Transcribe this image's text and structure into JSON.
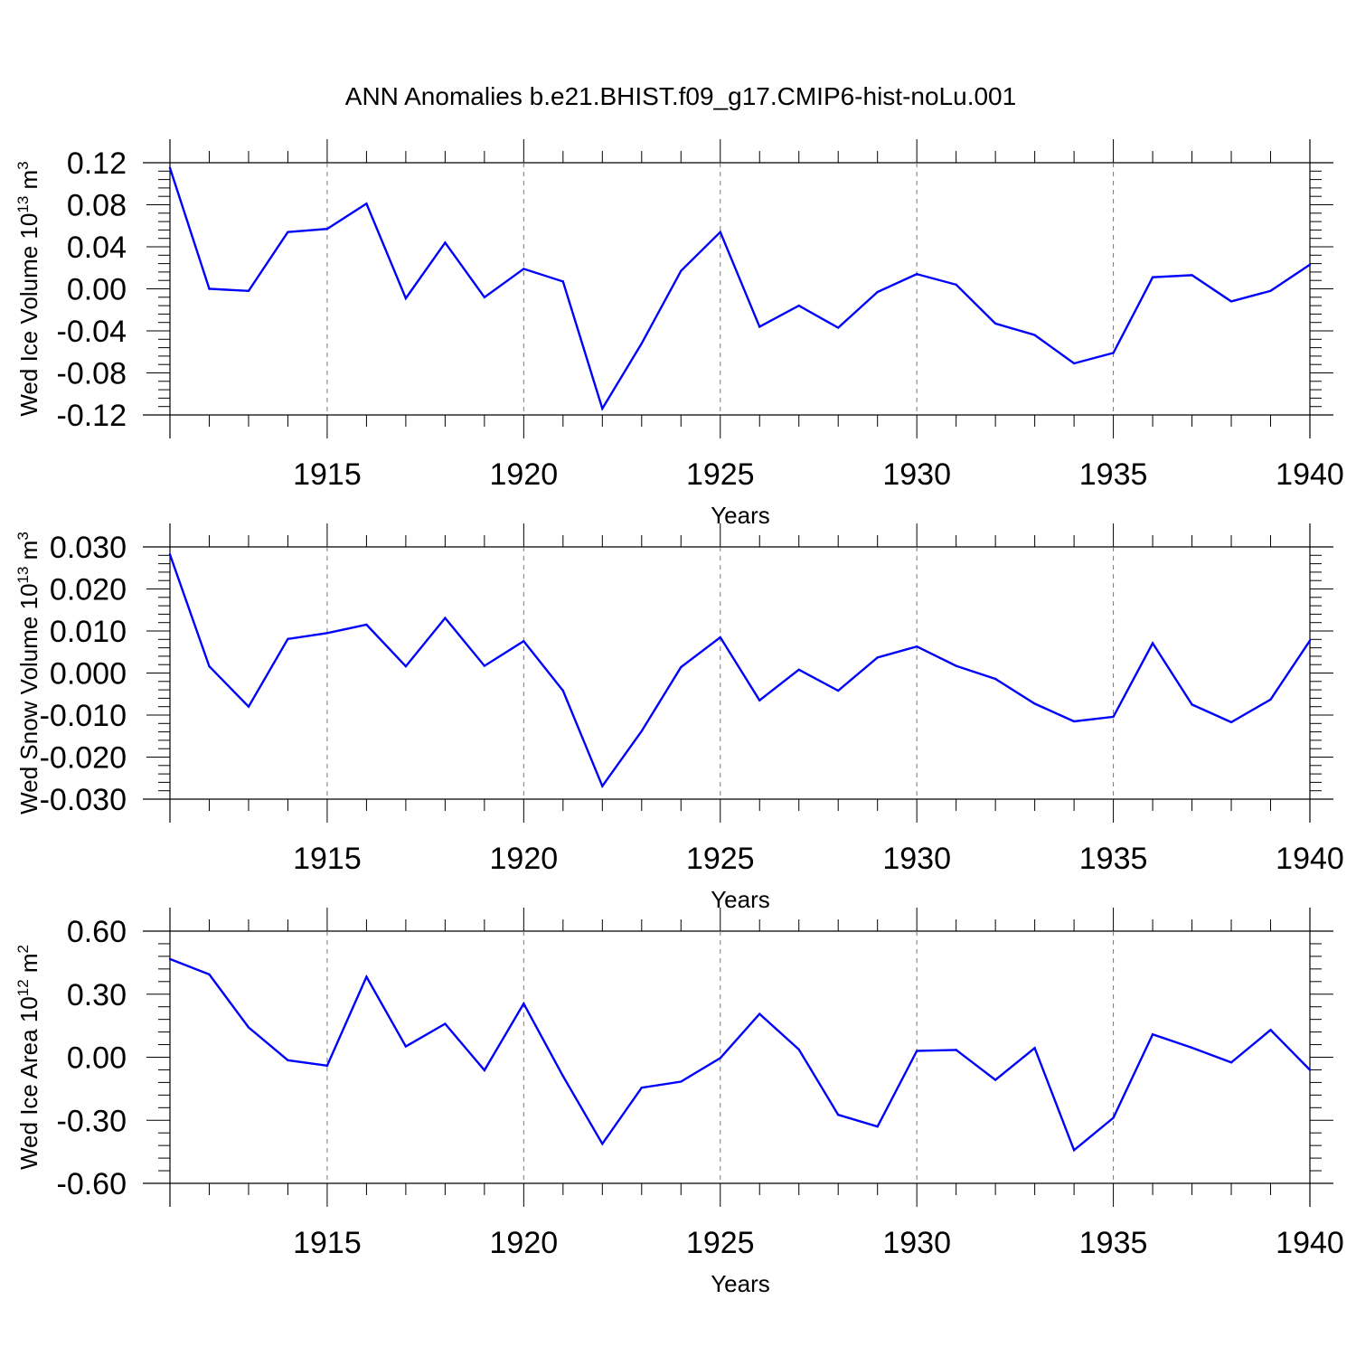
{
  "title": "ANN Anomalies b.e21.BHIST.f09_g17.CMIP6-hist-noLu.001",
  "colors": {
    "line": "#0000ff",
    "axis": "#000000",
    "grid": "#777777"
  },
  "chart_data": [
    {
      "type": "line",
      "ylabel": {
        "text": "Wed Ice Volume 10",
        "sup": "13",
        "unit": " m",
        "unit_sup": "3"
      },
      "xlabel": "Years",
      "xlim": [
        1911,
        1940
      ],
      "ylim": [
        -0.12,
        0.12
      ],
      "yticks": [
        {
          "v": 0.12,
          "label": "0.12"
        },
        {
          "v": 0.08,
          "label": "0.08"
        },
        {
          "v": 0.04,
          "label": "0.04"
        },
        {
          "v": 0.0,
          "label": "0.00"
        },
        {
          "v": -0.04,
          "label": "-0.04"
        },
        {
          "v": -0.08,
          "label": "-0.08"
        },
        {
          "v": -0.12,
          "label": "-0.12"
        }
      ],
      "xticks": [
        {
          "v": 1915,
          "label": "1915"
        },
        {
          "v": 1920,
          "label": "1920"
        },
        {
          "v": 1925,
          "label": "1925"
        },
        {
          "v": 1930,
          "label": "1930"
        },
        {
          "v": 1935,
          "label": "1935"
        },
        {
          "v": 1940,
          "label": "1940"
        }
      ],
      "grid": "vertical dashed at major x ticks",
      "x": [
        1911,
        1912,
        1913,
        1914,
        1915,
        1916,
        1917,
        1918,
        1919,
        1920,
        1921,
        1922,
        1923,
        1924,
        1925,
        1926,
        1927,
        1928,
        1929,
        1930,
        1931,
        1932,
        1933,
        1934,
        1935,
        1936,
        1937,
        1938,
        1939,
        1940
      ],
      "values": [
        0.115,
        0.0,
        -0.002,
        0.054,
        0.057,
        0.081,
        -0.009,
        0.044,
        -0.008,
        0.019,
        0.007,
        -0.114,
        -0.052,
        0.017,
        0.054,
        -0.036,
        -0.016,
        -0.037,
        -0.003,
        0.014,
        0.004,
        -0.033,
        -0.044,
        -0.071,
        -0.061,
        0.011,
        0.013,
        -0.012,
        -0.002,
        0.023
      ]
    },
    {
      "type": "line",
      "ylabel": {
        "text": "Wed Snow Volume 10",
        "sup": "13",
        "unit": " m",
        "unit_sup": "3"
      },
      "xlabel": "Years",
      "xlim": [
        1911,
        1940
      ],
      "ylim": [
        -0.03,
        0.03
      ],
      "yticks": [
        {
          "v": 0.03,
          "label": "0.030"
        },
        {
          "v": 0.02,
          "label": "0.020"
        },
        {
          "v": 0.01,
          "label": "0.010"
        },
        {
          "v": 0.0,
          "label": "0.000"
        },
        {
          "v": -0.01,
          "label": "-0.010"
        },
        {
          "v": -0.02,
          "label": "-0.020"
        },
        {
          "v": -0.03,
          "label": "-0.030"
        }
      ],
      "xticks": [
        {
          "v": 1915,
          "label": "1915"
        },
        {
          "v": 1920,
          "label": "1920"
        },
        {
          "v": 1925,
          "label": "1925"
        },
        {
          "v": 1930,
          "label": "1930"
        },
        {
          "v": 1935,
          "label": "1935"
        },
        {
          "v": 1940,
          "label": "1940"
        }
      ],
      "grid": "vertical dashed at major x ticks",
      "x": [
        1911,
        1912,
        1913,
        1914,
        1915,
        1916,
        1917,
        1918,
        1919,
        1920,
        1921,
        1922,
        1923,
        1924,
        1925,
        1926,
        1927,
        1928,
        1929,
        1930,
        1931,
        1932,
        1933,
        1934,
        1935,
        1936,
        1937,
        1938,
        1939,
        1940
      ],
      "values": [
        0.0282,
        0.0016,
        -0.008,
        0.0081,
        0.0095,
        0.0115,
        0.0016,
        0.0131,
        0.0017,
        0.0076,
        -0.0042,
        -0.0269,
        -0.0138,
        0.0014,
        0.0085,
        -0.0065,
        0.0008,
        -0.0042,
        0.0037,
        0.0063,
        0.0017,
        -0.0014,
        -0.0073,
        -0.0115,
        -0.0104,
        0.0071,
        -0.0075,
        -0.0117,
        -0.0063,
        0.0077
      ]
    },
    {
      "type": "line",
      "ylabel": {
        "text": "Wed Ice Area 10",
        "sup": "12",
        "unit": " m",
        "unit_sup": "2"
      },
      "xlabel": "Years",
      "xlim": [
        1911,
        1940
      ],
      "ylim": [
        -0.6,
        0.6
      ],
      "yticks": [
        {
          "v": 0.6,
          "label": "0.60"
        },
        {
          "v": 0.3,
          "label": "0.30"
        },
        {
          "v": 0.0,
          "label": "0.00"
        },
        {
          "v": -0.3,
          "label": "-0.30"
        },
        {
          "v": -0.6,
          "label": "-0.60"
        }
      ],
      "xticks": [
        {
          "v": 1915,
          "label": "1915"
        },
        {
          "v": 1920,
          "label": "1920"
        },
        {
          "v": 1925,
          "label": "1925"
        },
        {
          "v": 1930,
          "label": "1930"
        },
        {
          "v": 1935,
          "label": "1935"
        },
        {
          "v": 1940,
          "label": "1940"
        }
      ],
      "grid": "vertical dashed at major x ticks",
      "x": [
        1911,
        1912,
        1913,
        1914,
        1915,
        1916,
        1917,
        1918,
        1919,
        1920,
        1921,
        1922,
        1923,
        1924,
        1925,
        1926,
        1927,
        1928,
        1929,
        1930,
        1931,
        1932,
        1933,
        1934,
        1935,
        1936,
        1937,
        1938,
        1939,
        1940
      ],
      "values": [
        0.467,
        0.394,
        0.142,
        -0.014,
        -0.04,
        0.383,
        0.051,
        0.159,
        -0.062,
        0.255,
        -0.09,
        -0.412,
        -0.145,
        -0.116,
        -0.004,
        0.206,
        0.037,
        -0.274,
        -0.33,
        0.03,
        0.035,
        -0.108,
        0.044,
        -0.442,
        -0.288,
        0.109,
        0.045,
        -0.025,
        0.13,
        -0.06
      ]
    }
  ]
}
